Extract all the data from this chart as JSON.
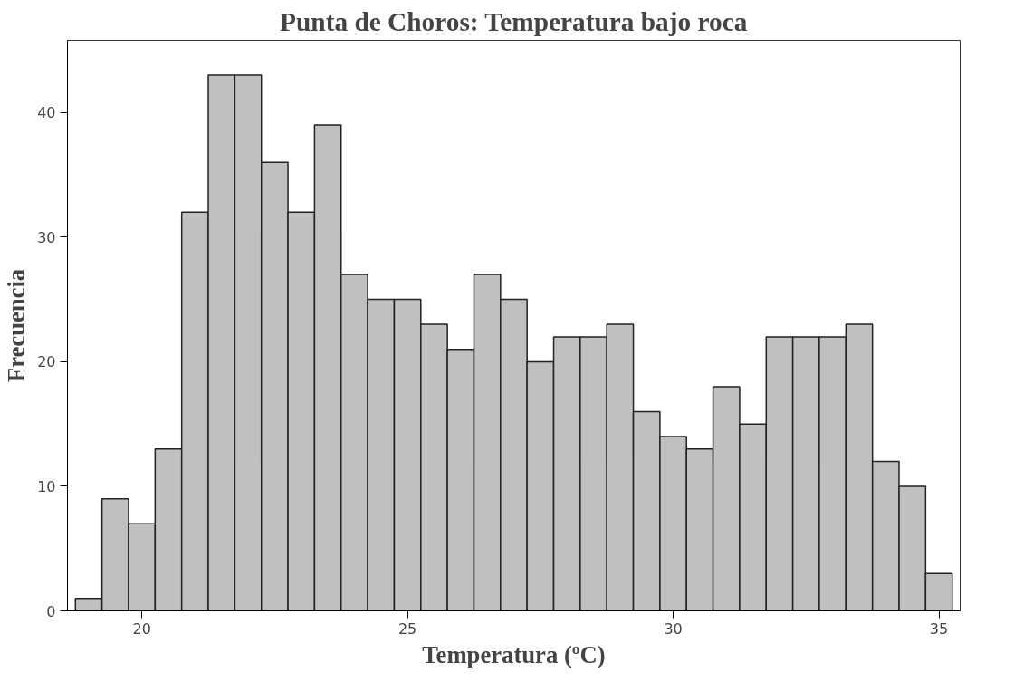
{
  "chart_data": {
    "type": "histogram",
    "title": "Punta de Choros: Temperatura bajo roca",
    "xlabel": "Temperatura (ºC)",
    "ylabel": "Frecuencia",
    "bins": [
      18.75,
      19.25,
      19.75,
      20.25,
      20.75,
      21.25,
      21.75,
      22.25,
      22.75,
      23.25,
      23.75,
      24.25,
      24.75,
      25.25,
      25.75,
      26.25,
      26.75,
      27.25,
      27.75,
      28.25,
      28.75,
      29.25,
      29.75,
      30.25,
      30.75,
      31.25,
      31.75,
      32.25,
      32.75,
      33.25,
      33.75,
      34.25,
      34.75,
      35.25
    ],
    "values": [
      1,
      9,
      7,
      13,
      32,
      43,
      43,
      36,
      32,
      39,
      27,
      25,
      25,
      23,
      21,
      27,
      25,
      20,
      22,
      22,
      23,
      16,
      14,
      13,
      18,
      15,
      22,
      22,
      22,
      23,
      12,
      10,
      3
    ],
    "color": "#c0c0c0",
    "xlim": [
      18.6,
      35.4
    ],
    "xticks": [
      20,
      25,
      30,
      35
    ],
    "ylim": [
      0,
      45.8
    ],
    "yticks": [
      0,
      10,
      20,
      30,
      40
    ],
    "grid": false
  }
}
